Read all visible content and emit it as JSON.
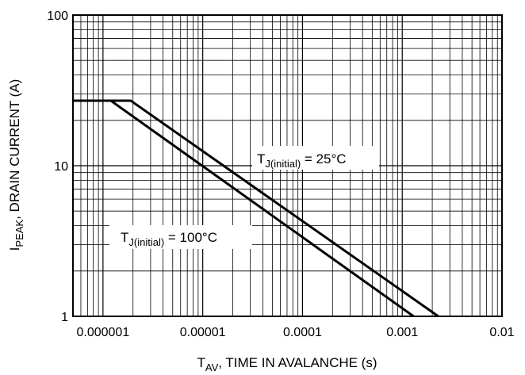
{
  "chart_data": {
    "type": "line",
    "title": "",
    "xscale": "log",
    "yscale": "log",
    "xlim": [
      5e-07,
      0.01
    ],
    "ylim": [
      1,
      100
    ],
    "grid": true,
    "xlabel": {
      "main": "T",
      "sub": "AV",
      "rest": ", TIME IN AVALANCHE (s)"
    },
    "ylabel": {
      "main": "I",
      "sub": "PEAK",
      "rest": ", DRAIN CURRENT (A)"
    },
    "x_ticks": [
      {
        "value": 1e-06,
        "label": "0.000001"
      },
      {
        "value": 1e-05,
        "label": "0.00001"
      },
      {
        "value": 0.0001,
        "label": "0.0001"
      },
      {
        "value": 0.001,
        "label": "0.001"
      },
      {
        "value": 0.01,
        "label": "0.01"
      }
    ],
    "y_ticks": [
      {
        "value": 1,
        "label": "1"
      },
      {
        "value": 10,
        "label": "10"
      },
      {
        "value": 100,
        "label": "100"
      }
    ],
    "series": [
      {
        "x": [
          5e-07,
          1.9e-06,
          0.0023
        ],
        "y": [
          27,
          27,
          1
        ]
      },
      {
        "x": [
          5e-07,
          1.2e-06,
          0.0013
        ],
        "y": [
          27,
          27,
          1
        ]
      }
    ],
    "annotations": [
      {
        "main": "T",
        "sub": "J(initial)",
        "rest": " = 25°C"
      },
      {
        "main": "T",
        "sub": "J(initial)",
        "rest": " = 100°C"
      }
    ]
  }
}
